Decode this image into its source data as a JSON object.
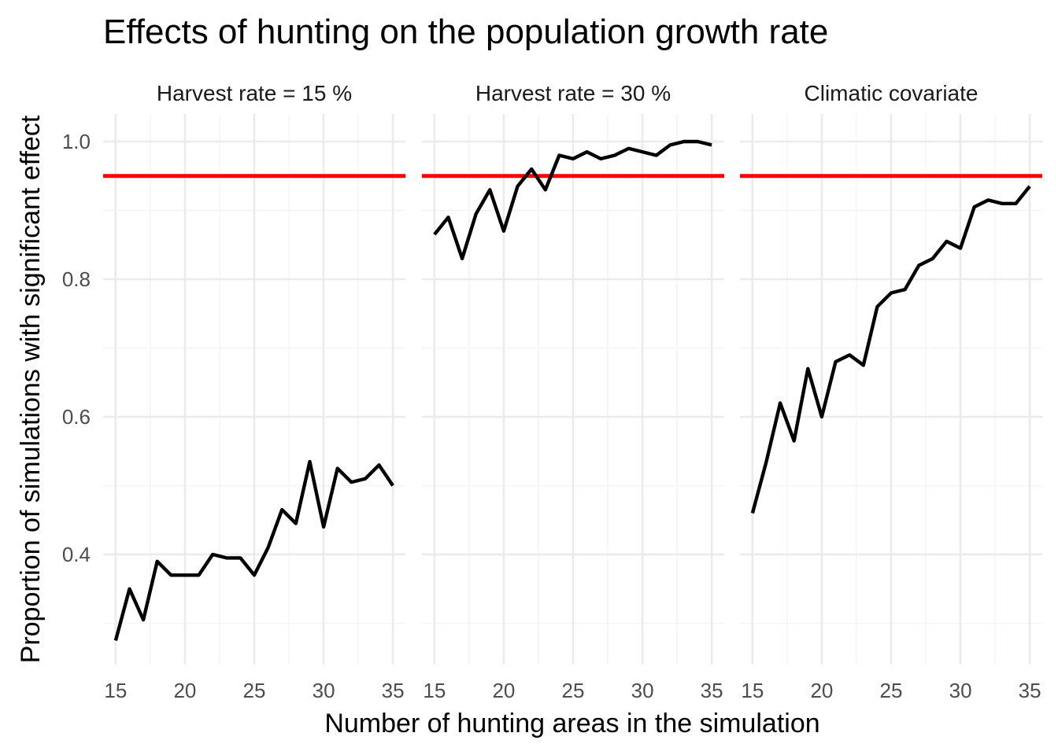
{
  "chart_data": {
    "type": "line",
    "title": "Effects of hunting on the population growth rate",
    "xlabel": "Number of hunting areas in the simulation",
    "ylabel": "Proportion of simulations with significant effect",
    "xlim": [
      14.1,
      35.9
    ],
    "ylim": [
      0.24,
      1.04
    ],
    "x_ticks": [
      15,
      20,
      25,
      30,
      35
    ],
    "y_ticks": [
      0.4,
      0.6,
      0.8,
      1.0
    ],
    "y_tick_labels": [
      "0.4",
      "0.6",
      "0.8",
      "1.0"
    ],
    "grid": true,
    "line_color": "#000000",
    "reference_line": {
      "y": 0.95,
      "color": "#ff0000"
    },
    "x": [
      15,
      16,
      17,
      18,
      19,
      20,
      21,
      22,
      23,
      24,
      25,
      26,
      27,
      28,
      29,
      30,
      31,
      32,
      33,
      34,
      35
    ],
    "panels": [
      {
        "strip_label": "Harvest rate = 15 %",
        "values": [
          0.275,
          0.35,
          0.305,
          0.39,
          0.37,
          0.37,
          0.37,
          0.4,
          0.395,
          0.395,
          0.37,
          0.41,
          0.465,
          0.445,
          0.535,
          0.44,
          0.525,
          0.505,
          0.51,
          0.53,
          0.5
        ]
      },
      {
        "strip_label": "Harvest rate = 30 %",
        "values": [
          0.865,
          0.89,
          0.83,
          0.895,
          0.93,
          0.87,
          0.935,
          0.96,
          0.93,
          0.98,
          0.975,
          0.985,
          0.975,
          0.98,
          0.99,
          0.985,
          0.98,
          0.995,
          1.0,
          1.0,
          0.995
        ]
      },
      {
        "strip_label": "Climatic covariate",
        "values": [
          0.46,
          0.535,
          0.62,
          0.565,
          0.67,
          0.6,
          0.68,
          0.69,
          0.675,
          0.76,
          0.78,
          0.785,
          0.82,
          0.83,
          0.855,
          0.845,
          0.905,
          0.915,
          0.91,
          0.91,
          0.935
        ]
      }
    ]
  }
}
